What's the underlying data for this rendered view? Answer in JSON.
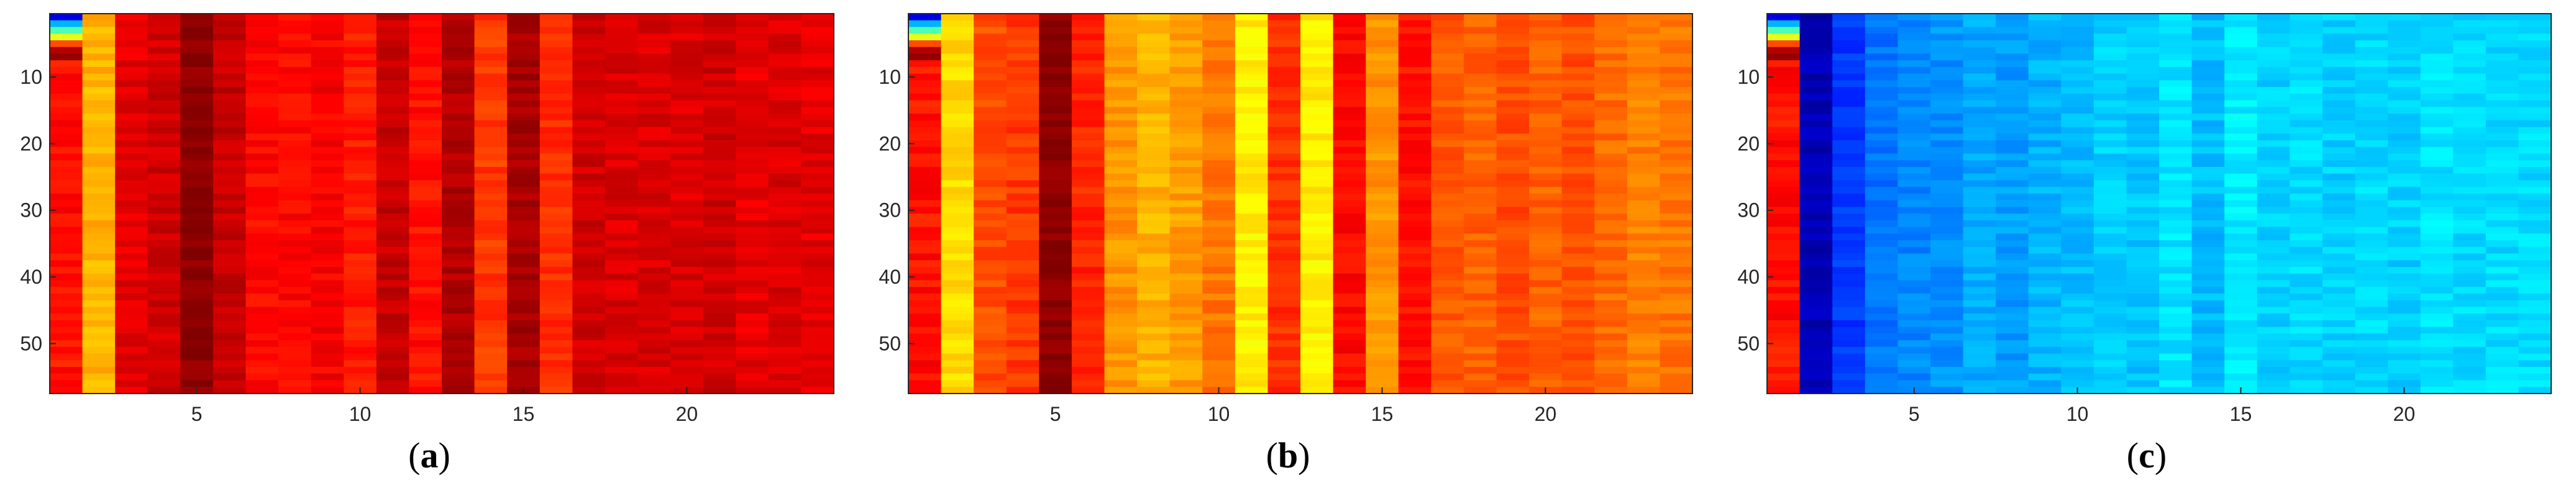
{
  "chart_data": [
    {
      "type": "heatmap",
      "panel_label": "a",
      "x_ticks": [
        5,
        10,
        15,
        20
      ],
      "y_ticks": [
        10,
        20,
        30,
        40,
        50
      ],
      "xlim": [
        0.5,
        24.5
      ],
      "ylim": [
        0.5,
        57.5
      ],
      "rows": 57,
      "columns": 24,
      "colormap": "jet",
      "column_levels": [
        0.86,
        0.7,
        0.9,
        0.92,
        0.99,
        0.93,
        0.87,
        0.87,
        0.88,
        0.85,
        0.93,
        0.86,
        0.95,
        0.82,
        0.96,
        0.83,
        0.92,
        0.91,
        0.91,
        0.91,
        0.92,
        0.9,
        0.91,
        0.9
      ],
      "top_rows_note": "first column top rows vary (blue to dark red)"
    },
    {
      "type": "heatmap",
      "panel_label": "b",
      "x_ticks": [
        5,
        10,
        15,
        20
      ],
      "y_ticks": [
        10,
        20,
        30,
        40,
        50
      ],
      "xlim": [
        0.5,
        24.5
      ],
      "ylim": [
        0.5,
        57.5
      ],
      "rows": 57,
      "columns": 24,
      "colormap": "jet",
      "column_levels": [
        0.86,
        0.66,
        0.8,
        0.82,
        0.99,
        0.84,
        0.73,
        0.7,
        0.72,
        0.76,
        0.64,
        0.83,
        0.64,
        0.87,
        0.73,
        0.86,
        0.79,
        0.78,
        0.8,
        0.78,
        0.8,
        0.77,
        0.75,
        0.76
      ],
      "top_rows_note": "first column top rows vary (blue to dark red)"
    },
    {
      "type": "heatmap",
      "panel_label": "c",
      "x_ticks": [
        5,
        10,
        15,
        20
      ],
      "y_ticks": [
        10,
        20,
        30,
        40,
        50
      ],
      "xlim": [
        0.5,
        24.5
      ],
      "ylim": [
        0.5,
        57.5
      ],
      "rows": 57,
      "columns": 24,
      "colormap": "jet",
      "column_levels": [
        0.86,
        0.05,
        0.18,
        0.24,
        0.26,
        0.27,
        0.29,
        0.28,
        0.3,
        0.31,
        0.33,
        0.32,
        0.35,
        0.31,
        0.36,
        0.33,
        0.34,
        0.33,
        0.34,
        0.33,
        0.35,
        0.34,
        0.34,
        0.34
      ],
      "top_rows_note": "first column top rows vary (blue to dark red)"
    }
  ],
  "captions": [
    {
      "open": "(",
      "letter": "a",
      "close": ")"
    },
    {
      "open": "(",
      "letter": "b",
      "close": ")"
    },
    {
      "open": "(",
      "letter": "c",
      "close": ")"
    }
  ]
}
